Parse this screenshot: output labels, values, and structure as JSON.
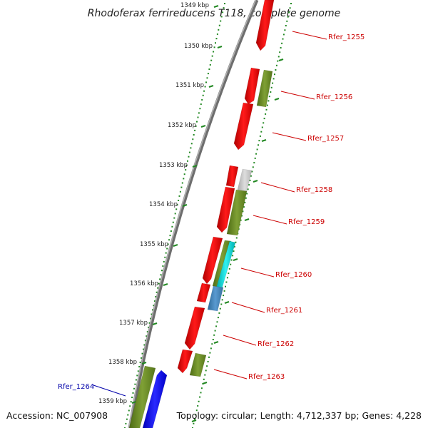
{
  "title": "Rhodoferax ferrireducens T118, complete genome",
  "accession": "Accession: NC_007908",
  "summary": "Topology: circular; Length: 4,712,337 bp; Genes: 4,228",
  "scale_labels": [
    "1349 kbp",
    "1350 kbp",
    "1351 kbp",
    "1352 kbp",
    "1353 kbp",
    "1354 kbp",
    "1355 kbp",
    "1356 kbp",
    "1357 kbp",
    "1358 kbp",
    "1359 kbp"
  ],
  "gene_labels": [
    {
      "id": "Rfer_1255",
      "color": "#cc0000"
    },
    {
      "id": "Rfer_1256",
      "color": "#cc0000"
    },
    {
      "id": "Rfer_1257",
      "color": "#cc0000"
    },
    {
      "id": "Rfer_1258",
      "color": "#cc0000"
    },
    {
      "id": "Rfer_1259",
      "color": "#cc0000"
    },
    {
      "id": "Rfer_1260",
      "color": "#cc0000"
    },
    {
      "id": "Rfer_1261",
      "color": "#cc0000"
    },
    {
      "id": "Rfer_1262",
      "color": "#cc0000"
    },
    {
      "id": "Rfer_1263",
      "color": "#cc0000"
    },
    {
      "id": "Rfer_1264",
      "color": "#0000aa"
    }
  ],
  "colors": {
    "backbone": "#7a7a7a",
    "ruler_dots": "#228822",
    "gene_red": "#ff0000",
    "gene_olive": "#6b8e23",
    "gene_gray": "#c8c8c8",
    "gene_cyan": "#00d0d0",
    "gene_steel": "#4682b4",
    "gene_blue": "#0000ff"
  }
}
